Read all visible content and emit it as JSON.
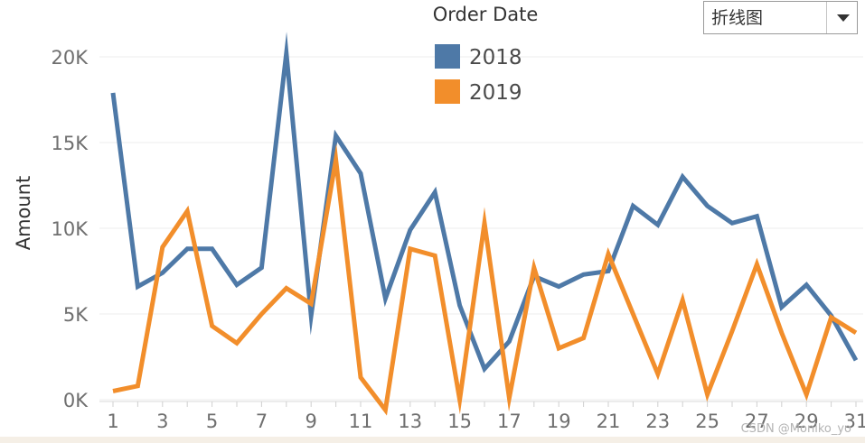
{
  "chart_data": {
    "type": "line",
    "x": [
      1,
      2,
      3,
      4,
      5,
      6,
      7,
      8,
      9,
      10,
      11,
      12,
      13,
      14,
      15,
      16,
      17,
      18,
      19,
      20,
      21,
      22,
      23,
      24,
      25,
      26,
      27,
      28,
      29,
      30,
      31
    ],
    "x_tick_labels": [
      "1",
      "3",
      "5",
      "7",
      "9",
      "11",
      "13",
      "15",
      "17",
      "19",
      "21",
      "23",
      "25",
      "27",
      "29",
      "31"
    ],
    "y_tick_labels": [
      "0K",
      "5K",
      "10K",
      "15K",
      "20K"
    ],
    "y_ticks": [
      0,
      5000,
      10000,
      15000,
      20000
    ],
    "ylim": [
      -1200,
      22000
    ],
    "xlabel": "",
    "ylabel": "Amount",
    "legend_title": "Order Date",
    "legend_position": "top-center",
    "grid": true,
    "series": [
      {
        "name": "2018",
        "color": "#4e79a7",
        "values": [
          17900,
          6600,
          7400,
          8800,
          8800,
          6700,
          7700,
          20200,
          4900,
          15400,
          13200,
          5900,
          9900,
          12100,
          5500,
          1800,
          3400,
          7200,
          6600,
          7300,
          7500,
          11300,
          10200,
          13000,
          11300,
          10300,
          10700,
          5400,
          6700,
          4900,
          2300
        ]
      },
      {
        "name": "2019",
        "color": "#f28e2b",
        "values": [
          500,
          800,
          8900,
          11000,
          4300,
          3300,
          5000,
          6500,
          5600,
          14000,
          1300,
          -600,
          8800,
          8400,
          0,
          10300,
          100,
          7700,
          3000,
          3600,
          8500,
          5000,
          1500,
          5800,
          300,
          4000,
          7900,
          3900,
          300,
          4800,
          3900
        ]
      }
    ]
  },
  "dropdown": {
    "selected": "折线图"
  },
  "watermark": "CSDN @Moniko_yo"
}
